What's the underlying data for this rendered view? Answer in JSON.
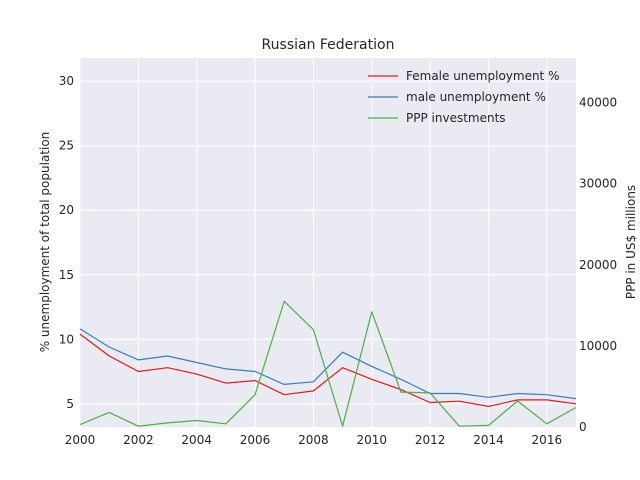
{
  "chart_data": {
    "type": "line",
    "title": "Russian Federation",
    "ylabel": "% unemployment of total population",
    "y2label": "PPP in US$ millions",
    "x": [
      2000,
      2001,
      2002,
      2003,
      2004,
      2005,
      2006,
      2007,
      2008,
      2009,
      2010,
      2011,
      2012,
      2013,
      2014,
      2015,
      2016,
      2017
    ],
    "xlim": [
      2000,
      2017
    ],
    "xticks": [
      "2000",
      "2002",
      "2004",
      "2006",
      "2008",
      "2010",
      "2012",
      "2014",
      "2016"
    ],
    "ylim": [
      3.2,
      31.8
    ],
    "yticks": [
      "5",
      "10",
      "15",
      "20",
      "25",
      "30"
    ],
    "y2lim": [
      0,
      45500
    ],
    "y2ticks": [
      "0",
      "10000",
      "20000",
      "30000",
      "40000"
    ],
    "grid": true,
    "legend_position": "top-right",
    "series": [
      {
        "name": "Female unemployment %",
        "axis": "left",
        "color": "#e41a1c",
        "values": [
          10.4,
          8.7,
          7.5,
          7.8,
          7.3,
          6.6,
          6.8,
          5.7,
          6.0,
          7.8,
          6.9,
          6.1,
          5.1,
          5.2,
          4.8,
          5.3,
          5.3,
          5.0
        ]
      },
      {
        "name": "male unemployment %",
        "axis": "left",
        "color": "#377eb8",
        "values": [
          10.8,
          9.4,
          8.4,
          8.7,
          8.2,
          7.7,
          7.5,
          6.5,
          6.7,
          9.0,
          7.9,
          6.9,
          5.8,
          5.8,
          5.5,
          5.8,
          5.7,
          5.4
        ]
      },
      {
        "name": "PPP investments",
        "axis": "right",
        "color": "#4daf4a",
        "values": [
          300,
          1800,
          100,
          500,
          800,
          400,
          4000,
          15500,
          12000,
          100,
          14200,
          4300,
          4200,
          100,
          200,
          3200,
          400,
          2400
        ]
      }
    ]
  }
}
